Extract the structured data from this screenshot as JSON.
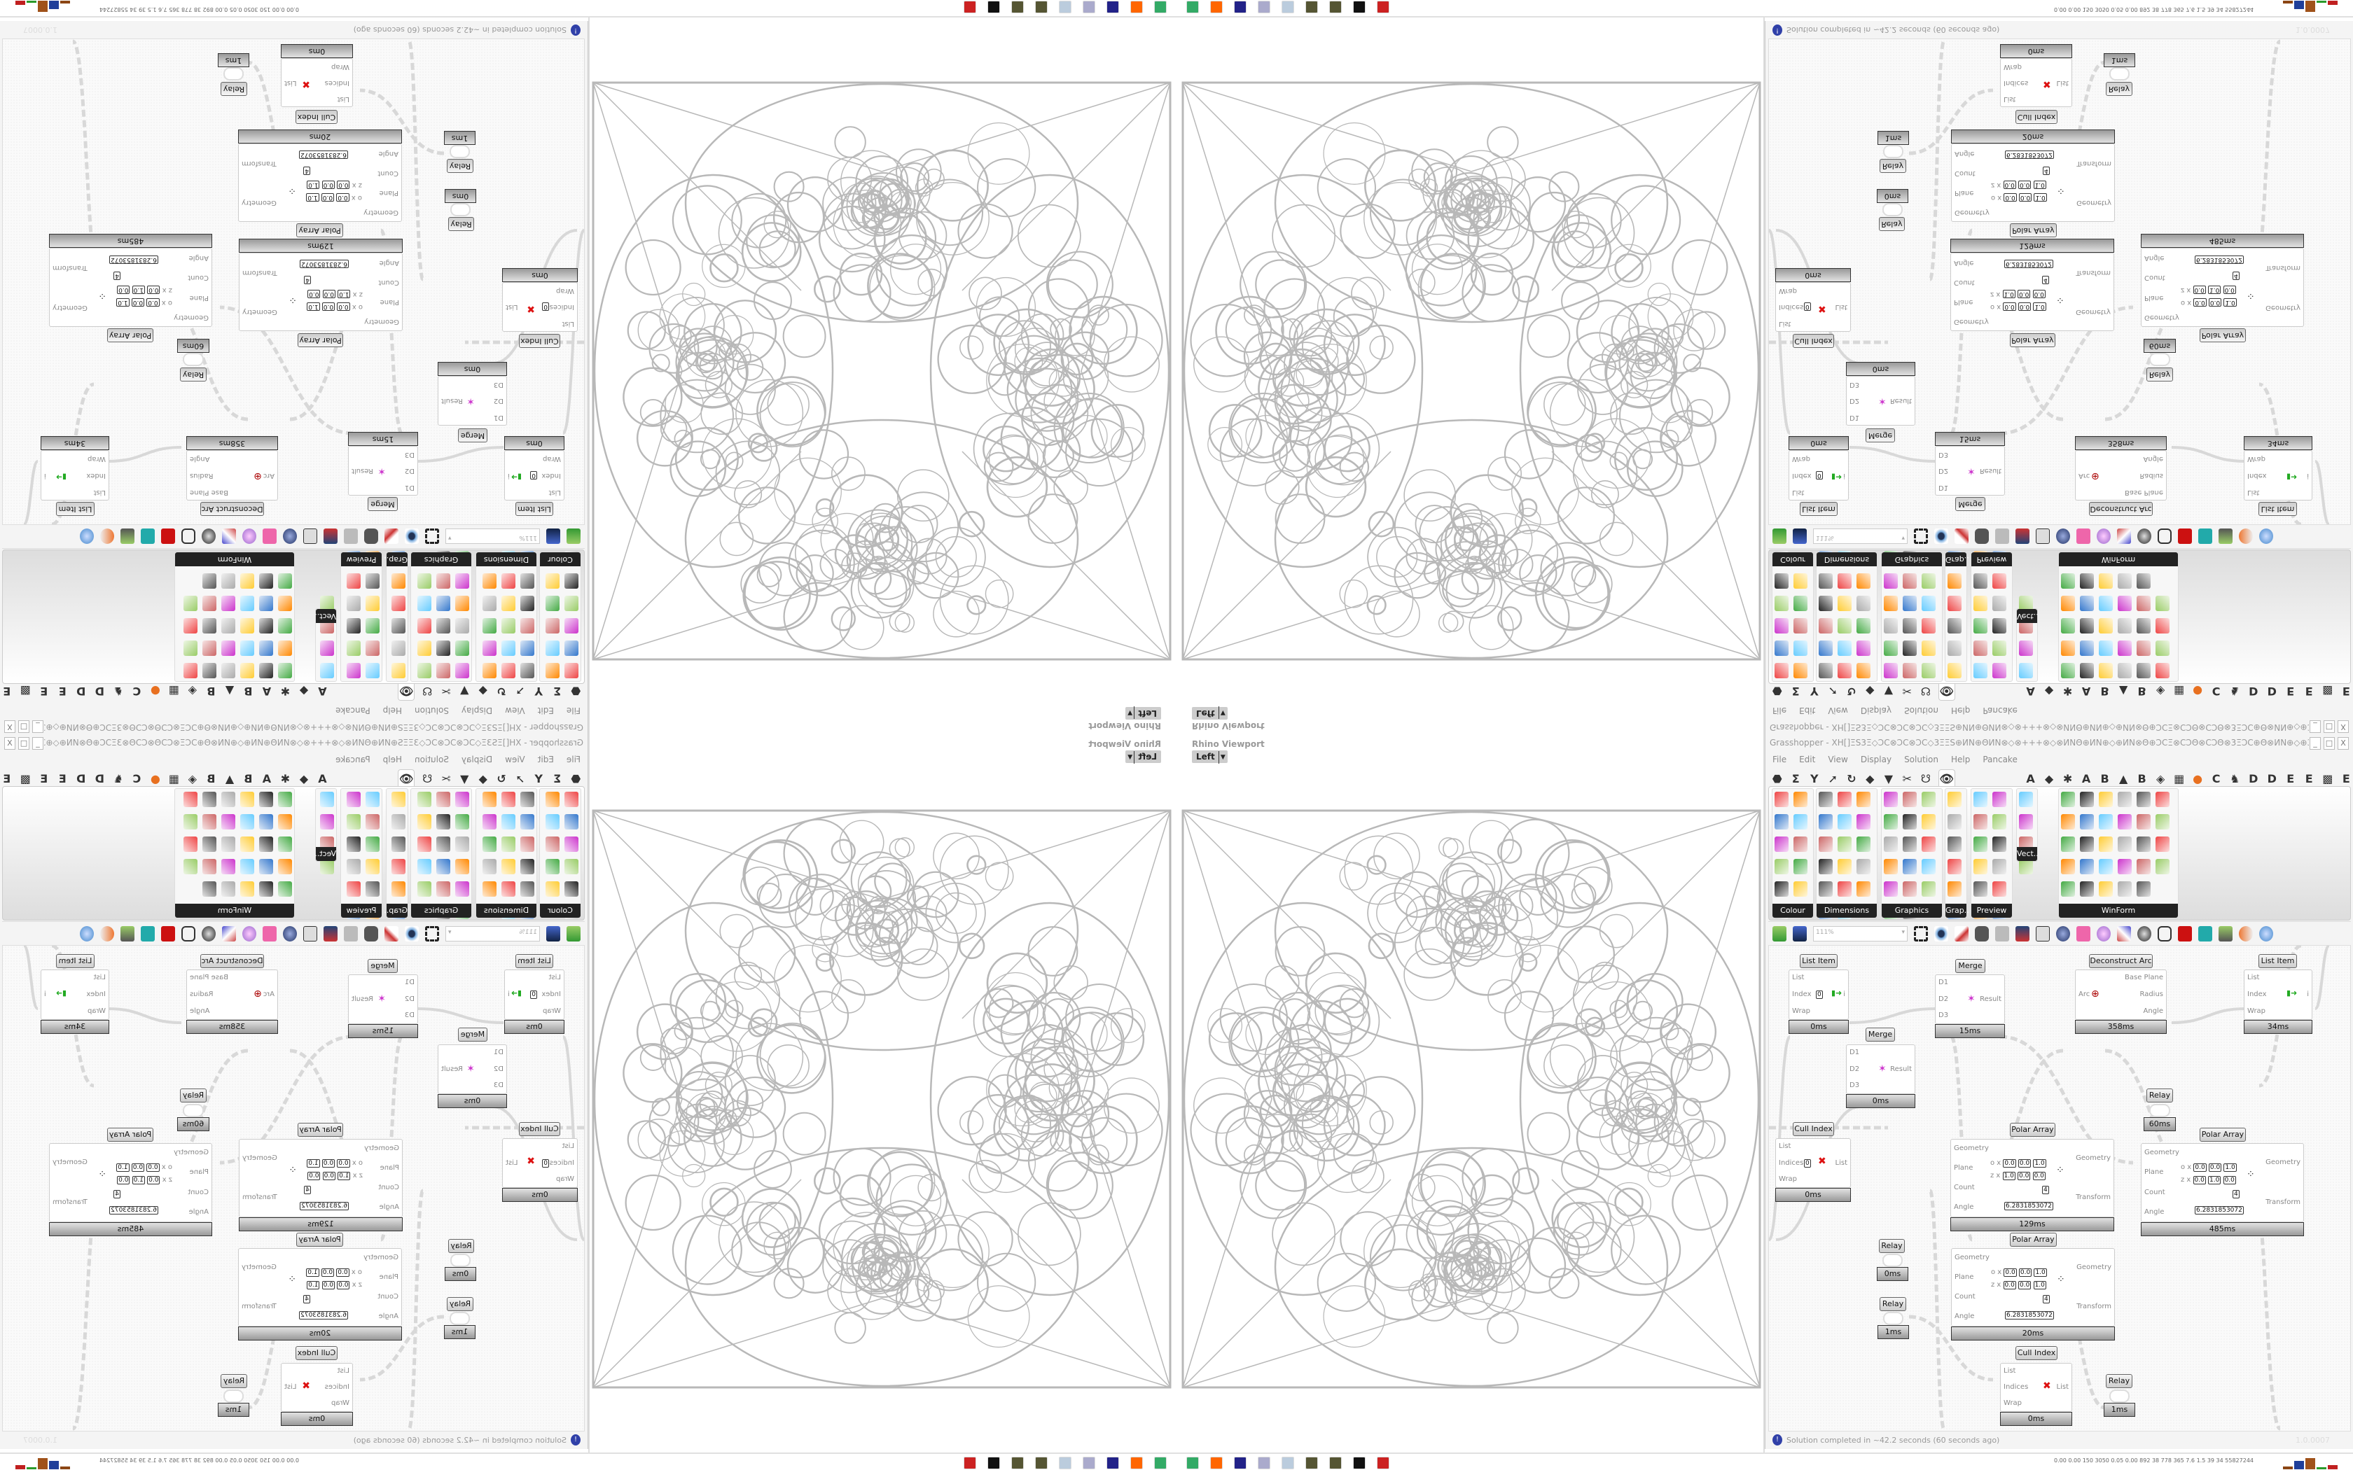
{
  "viewport": {
    "title": "Rhino Viewport",
    "view": "Left"
  },
  "grasshopper": {
    "title": "Grasshopper - XH[]ΞS3Ξ◇ϽϹ⊗ϽϹ⊗ϽϹ◇3ΞΞS⊕ИN⊕ΘИN⊗◇⊗+++⊗◇⊗ИNΘ⊕ИN⊕◇⊕ИN⊗Θ⊕ϽϹΞ⊗ϹϽΘ⊗ϹϽΘ⊗3ΞϽϹ⊕Θ⊗ИN⊕◇⊕3Ξ⊗3Ξ⊞+ΞS+⊞3Ξ⊗3Ξ⊕◇⊕⊗ϹϽ3Ξ⊞⊕+ϽϹ...",
    "window_buttons": [
      "_",
      "□",
      "X"
    ],
    "menu": [
      "File",
      "Edit",
      "View",
      "Display",
      "Solution",
      "Help",
      "Pancake"
    ],
    "tabs": [
      "⬣",
      "Σ",
      "Y",
      "➚",
      "↻",
      "◆",
      "▼",
      "✂",
      "☋",
      "👁",
      "A",
      "◆",
      "✱",
      "A",
      "B",
      "▲",
      "B",
      "◈",
      "▦",
      "●",
      "C",
      "♞",
      "D",
      "D",
      "E",
      "E",
      "▩",
      "E"
    ],
    "active_tab_index": 9,
    "panels": [
      {
        "label": "Colour",
        "icons": 11,
        "cols": 2
      },
      {
        "label": "Dimensions",
        "icons": 17,
        "cols": 3
      },
      {
        "label": "Graphics",
        "icons": 17,
        "cols": 3
      },
      {
        "label": "Grap..",
        "icons": 6,
        "cols": 1
      },
      {
        "label": "Preview",
        "icons": 12,
        "cols": 2
      },
      {
        "label": "Vect..",
        "icons": 4,
        "cols": 1
      },
      {
        "label": "WinForm",
        "icons": 29,
        "cols": 6
      }
    ],
    "zoom": "111%",
    "status": "Solution completed in ~42.2 seconds (60 seconds ago)",
    "version": "1.0.0007",
    "components": [
      {
        "name": "List Item",
        "time": "0ms",
        "inputs": [
          "List",
          "Index",
          "Wrap"
        ],
        "outputs": [
          "i"
        ],
        "index_value": "0"
      },
      {
        "name": "Merge",
        "time": "15ms",
        "inputs": [
          "D1",
          "D2",
          "D3"
        ],
        "outputs": [
          "Result"
        ]
      },
      {
        "name": "Merge",
        "time": "0ms",
        "inputs": [
          "D1",
          "D2",
          "D3"
        ],
        "outputs": [
          "Result"
        ]
      },
      {
        "name": "Deconstruct Arc",
        "time": "358ms",
        "inputs": [
          "Arc"
        ],
        "outputs": [
          "Base Plane",
          "Radius",
          "Angle"
        ]
      },
      {
        "name": "List Item",
        "time": "34ms",
        "inputs": [
          "List",
          "Index",
          "Wrap"
        ],
        "outputs": [
          "i"
        ]
      },
      {
        "name": "Relay",
        "time": "60ms"
      },
      {
        "name": "Cull Index",
        "time": "0ms",
        "inputs": [
          "List",
          "Indices",
          "Wrap"
        ],
        "outputs": [
          "List"
        ],
        "index_value": "0"
      },
      {
        "name": "Polar Array",
        "time": "129ms",
        "inputs": [
          "Geometry",
          "Plane",
          "Count",
          "Angle"
        ],
        "outputs": [
          "Geometry",
          "Transform"
        ],
        "origin": [
          "0.0",
          "0.0",
          "1.0"
        ],
        "zaxis": [
          "1.0",
          "0.0",
          "0.0"
        ],
        "count": "4",
        "angle": "6.2831853072"
      },
      {
        "name": "Polar Array",
        "time": "485ms",
        "inputs": [
          "Geometry",
          "Plane",
          "Count",
          "Angle"
        ],
        "outputs": [
          "Geometry",
          "Transform"
        ],
        "origin": [
          "0.0",
          "0.0",
          "1.0"
        ],
        "zaxis": [
          "0.0",
          "1.0",
          "0.0"
        ],
        "count": "4",
        "angle": "6.2831853072"
      },
      {
        "name": "Relay",
        "time": "0ms"
      },
      {
        "name": "Polar Array",
        "time": "20ms",
        "inputs": [
          "Geometry",
          "Plane",
          "Count",
          "Angle"
        ],
        "outputs": [
          "Geometry",
          "Transform"
        ],
        "origin": [
          "0.0",
          "0.0",
          "1.0"
        ],
        "zaxis": [
          "0.0",
          "0.0",
          "1.0"
        ],
        "count": "4",
        "angle": "6.2831853072"
      },
      {
        "name": "Relay",
        "time": "1ms"
      },
      {
        "name": "Cull Index",
        "time": "0ms",
        "inputs": [
          "List",
          "Indices",
          "Wrap"
        ],
        "outputs": [
          "List"
        ]
      },
      {
        "name": "Relay",
        "time": "1ms"
      }
    ]
  },
  "taskbar": {
    "apps": [
      "rhino-settings-icon",
      "rhino-icon",
      "grasshopper-icon",
      "grasshopper-icon",
      "notepad-icon",
      "script-icon",
      "save-64-icon",
      "firefox-icon",
      "terminal-icon"
    ],
    "save_label": "64",
    "stats": "0.00 0.00 150 3050 0.05 0.00 892 38 778 365 7.6 1.5 39 34 55827244",
    "bar_colors": [
      "#8b4513",
      "#1f3f9a",
      "#a0521a",
      "#2a9a2a",
      "#c02020"
    ]
  },
  "colors": {
    "wire": "#d8d8d8",
    "lattice": "#b8b8b8",
    "panel_label": "#222222"
  }
}
